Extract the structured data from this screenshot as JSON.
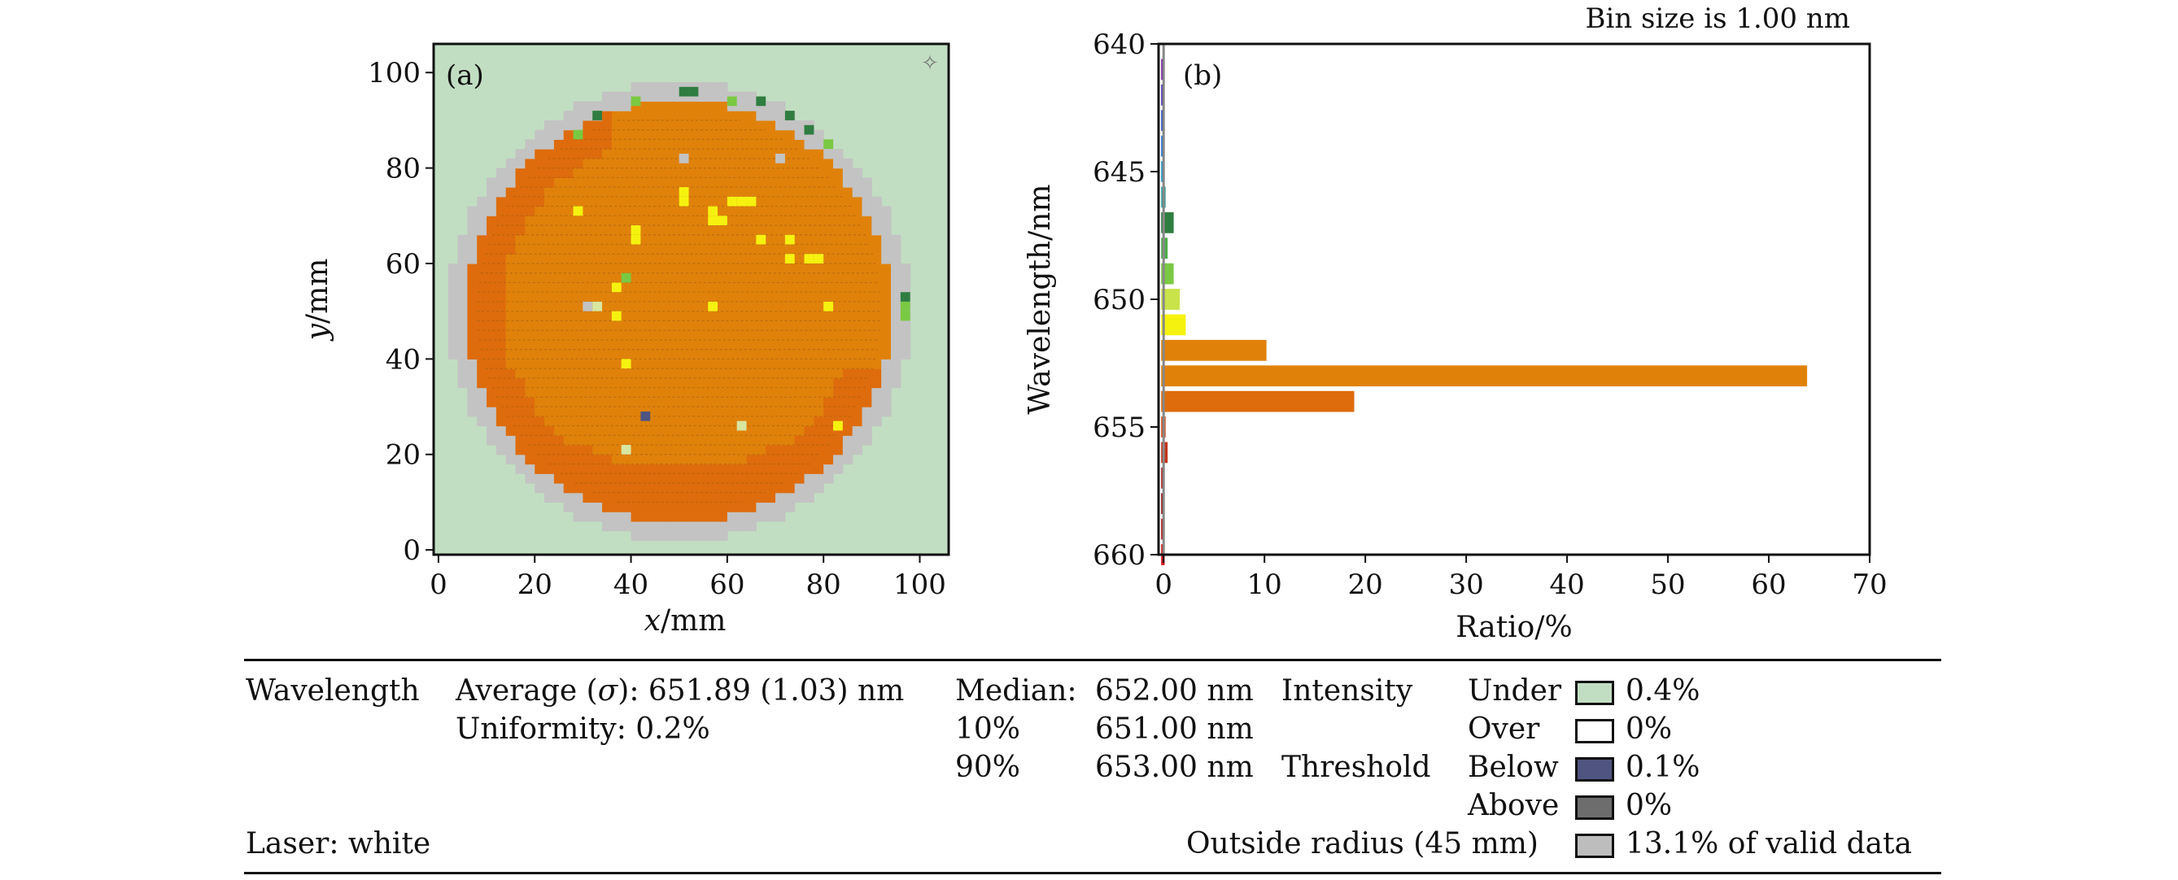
{
  "chart_data": [
    {
      "type": "heatmap",
      "panel_label": "(a)",
      "xlabel_var": "x",
      "xlabel_unit": "/mm",
      "ylabel_var": "y",
      "ylabel_unit": "/mm",
      "xlim": [
        -1,
        106
      ],
      "ylim": [
        -1,
        106
      ],
      "xticks": [
        0,
        20,
        40,
        60,
        80,
        100
      ],
      "yticks": [
        0,
        20,
        40,
        60,
        80,
        100
      ],
      "wafer_center_mm": [
        50,
        50
      ],
      "wafer_radius_mm": 48,
      "pixel_mm": 2,
      "background_color": "#c2dec2",
      "edge_color": "#c3c3c3",
      "main_color": "#e0820a",
      "alt_color": "#de6c0c",
      "highlight_color": "#f6f210",
      "special_pixels": [
        {
          "x": 50,
          "y": 81,
          "color": "#c3c3c3"
        },
        {
          "x": 70,
          "y": 81,
          "color": "#c3c3c3"
        },
        {
          "x": 50,
          "y": 74,
          "color": "#f6f210"
        },
        {
          "x": 50,
          "y": 72,
          "color": "#f6f210"
        },
        {
          "x": 56,
          "y": 70,
          "color": "#f6f210"
        },
        {
          "x": 56,
          "y": 68,
          "color": "#f6f210"
        },
        {
          "x": 60,
          "y": 72,
          "color": "#f6f210"
        },
        {
          "x": 62,
          "y": 72,
          "color": "#f6f210"
        },
        {
          "x": 64,
          "y": 72,
          "color": "#f6f210"
        },
        {
          "x": 58,
          "y": 68,
          "color": "#f6f210"
        },
        {
          "x": 28,
          "y": 70,
          "color": "#f6f210"
        },
        {
          "x": 40,
          "y": 66,
          "color": "#f6f210"
        },
        {
          "x": 40,
          "y": 64,
          "color": "#f6f210"
        },
        {
          "x": 66,
          "y": 64,
          "color": "#f6f210"
        },
        {
          "x": 72,
          "y": 64,
          "color": "#f6f210"
        },
        {
          "x": 72,
          "y": 60,
          "color": "#f6f210"
        },
        {
          "x": 76,
          "y": 60,
          "color": "#f6f210"
        },
        {
          "x": 78,
          "y": 60,
          "color": "#f6f210"
        },
        {
          "x": 38,
          "y": 56,
          "color": "#7ac943"
        },
        {
          "x": 36,
          "y": 54,
          "color": "#f6f210"
        },
        {
          "x": 30,
          "y": 50,
          "color": "#c3c3c3"
        },
        {
          "x": 32,
          "y": 50,
          "color": "#d8e6a0"
        },
        {
          "x": 56,
          "y": 50,
          "color": "#f6f210"
        },
        {
          "x": 80,
          "y": 50,
          "color": "#f6f210"
        },
        {
          "x": 36,
          "y": 48,
          "color": "#f6f210"
        },
        {
          "x": 38,
          "y": 38,
          "color": "#f6f210"
        },
        {
          "x": 42,
          "y": 27,
          "color": "#4f5580"
        },
        {
          "x": 62,
          "y": 25,
          "color": "#d8e6a0"
        },
        {
          "x": 82,
          "y": 25,
          "color": "#f6f210"
        },
        {
          "x": 38,
          "y": 20,
          "color": "#d8e6a0"
        },
        {
          "x": 96,
          "y": 52,
          "color": "#2f7d40"
        },
        {
          "x": 96,
          "y": 50,
          "color": "#7ac943"
        },
        {
          "x": 96,
          "y": 48,
          "color": "#7ac943"
        },
        {
          "x": 50,
          "y": 95,
          "color": "#2f7d40"
        },
        {
          "x": 52,
          "y": 95,
          "color": "#2f7d40"
        },
        {
          "x": 66,
          "y": 93,
          "color": "#2f7d40"
        },
        {
          "x": 32,
          "y": 90,
          "color": "#2f7d40"
        },
        {
          "x": 72,
          "y": 90,
          "color": "#2f7d40"
        },
        {
          "x": 76,
          "y": 87,
          "color": "#2f7d40"
        },
        {
          "x": 40,
          "y": 93,
          "color": "#7ac943"
        },
        {
          "x": 60,
          "y": 93,
          "color": "#7ac943"
        },
        {
          "x": 28,
          "y": 86,
          "color": "#7ac943"
        },
        {
          "x": 80,
          "y": 84,
          "color": "#7ac943"
        }
      ]
    },
    {
      "type": "bar",
      "orientation": "horizontal",
      "panel_label": "(b)",
      "annotation": "Bin size is 1.00 nm",
      "xlabel": "Ratio/%",
      "ylabel": "Wavelength/nm",
      "xlim": [
        -0.5,
        70
      ],
      "ylim": [
        660,
        640
      ],
      "xticks": [
        0,
        10,
        20,
        30,
        40,
        50,
        60,
        70
      ],
      "yticks": [
        640,
        645,
        650,
        655,
        660
      ],
      "vline_x": 0,
      "bars": [
        {
          "center": 641,
          "value": 0.1,
          "color": "#7b1fa2"
        },
        {
          "center": 642,
          "value": 0.1,
          "color": "#4a2fae"
        },
        {
          "center": 643,
          "value": 0.1,
          "color": "#2a52be"
        },
        {
          "center": 644,
          "value": 0.1,
          "color": "#1f6ed6"
        },
        {
          "center": 645,
          "value": 0.1,
          "color": "#1f95d0"
        },
        {
          "center": 646,
          "value": 0.2,
          "color": "#2aa3a0"
        },
        {
          "center": 647,
          "value": 1.0,
          "color": "#2f7d40"
        },
        {
          "center": 648,
          "value": 0.4,
          "color": "#4cae4c"
        },
        {
          "center": 649,
          "value": 1.0,
          "color": "#7ac943"
        },
        {
          "center": 650,
          "value": 1.6,
          "color": "#c9e34a"
        },
        {
          "center": 651,
          "value": 2.2,
          "color": "#f6f210"
        },
        {
          "center": 652,
          "value": 10.2,
          "color": "#e0820a"
        },
        {
          "center": 653,
          "value": 63.8,
          "color": "#e0820a"
        },
        {
          "center": 654,
          "value": 18.9,
          "color": "#de6c0c"
        },
        {
          "center": 655,
          "value": 0.2,
          "color": "#d44a16"
        },
        {
          "center": 656,
          "value": 0.4,
          "color": "#c2351a"
        },
        {
          "center": 657,
          "value": 0.1,
          "color": "#a82219"
        },
        {
          "center": 658,
          "value": 0.1,
          "color": "#8e1515"
        },
        {
          "center": 659,
          "value": 0.1,
          "color": "#b01414"
        },
        {
          "center": 660,
          "value": 0.1,
          "color": "#d41414"
        }
      ]
    }
  ],
  "summary": {
    "wavelength_label": "Wavelength",
    "average_prefix": "Average (",
    "sigma": "σ",
    "average_value": "): 651.89 (1.03) nm",
    "uniformity": "Uniformity: 0.2%",
    "median_label": "Median:",
    "median_value": "652.00 nm",
    "p10_label": "10%",
    "p10_value": "651.00 nm",
    "p90_label": "90%",
    "p90_value": "653.00 nm",
    "intensity_label": "Intensity",
    "threshold_label": "Threshold",
    "laser": "Laser: white",
    "outside": "Outside radius (45 mm)",
    "legend": [
      {
        "label": "Under",
        "color": "#c2dec2",
        "value": "0.4%"
      },
      {
        "label": "Over",
        "color": "#ffffff",
        "value": "0%"
      },
      {
        "label": "Below",
        "color": "#4f5580",
        "value": "0.1%"
      },
      {
        "label": "Above",
        "color": "#6d6d6d",
        "value": "0%"
      }
    ],
    "outside_swatch": "#bdbdbd",
    "outside_value": "13.1% of valid data"
  }
}
